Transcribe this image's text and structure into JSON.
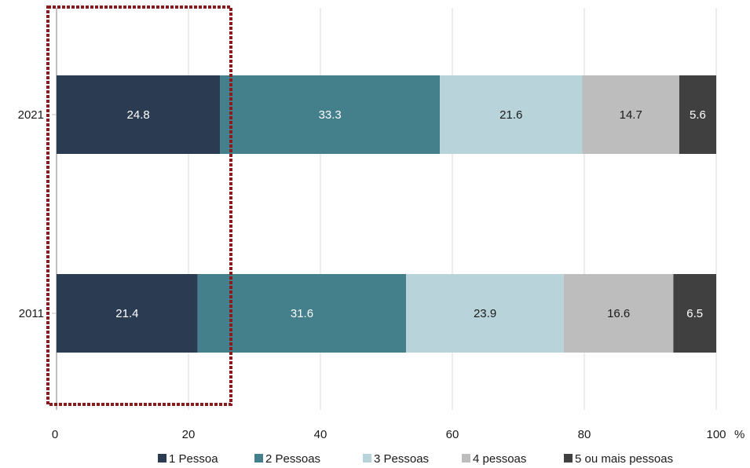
{
  "chart_data": {
    "type": "bar",
    "orientation": "horizontal",
    "stacked": true,
    "categories": [
      "2021",
      "2011"
    ],
    "series": [
      {
        "name": "1 Pessoa",
        "values": [
          24.8,
          21.4
        ],
        "color": "#2b3c52",
        "label_color": "#ffffff"
      },
      {
        "name": "2 Pessoas",
        "values": [
          33.3,
          31.6
        ],
        "color": "#43808c",
        "label_color": "#ffffff"
      },
      {
        "name": "3 Pessoas",
        "values": [
          21.6,
          23.9
        ],
        "color": "#b8d4da",
        "label_color": "#1a1a1a"
      },
      {
        "name": "4 pessoas",
        "values": [
          14.7,
          16.6
        ],
        "color": "#bdbdbd",
        "label_color": "#1a1a1a"
      },
      {
        "name": "5 ou mais pessoas",
        "values": [
          5.6,
          6.5
        ],
        "color": "#404040",
        "label_color": "#ffffff"
      }
    ],
    "xlim": [
      0,
      100
    ],
    "xticks": [
      "0",
      "20",
      "40",
      "60",
      "80",
      "100"
    ],
    "xunit": "%",
    "grid": true,
    "legend_position": "bottom",
    "highlight_box_color": "#8b1a1a"
  }
}
